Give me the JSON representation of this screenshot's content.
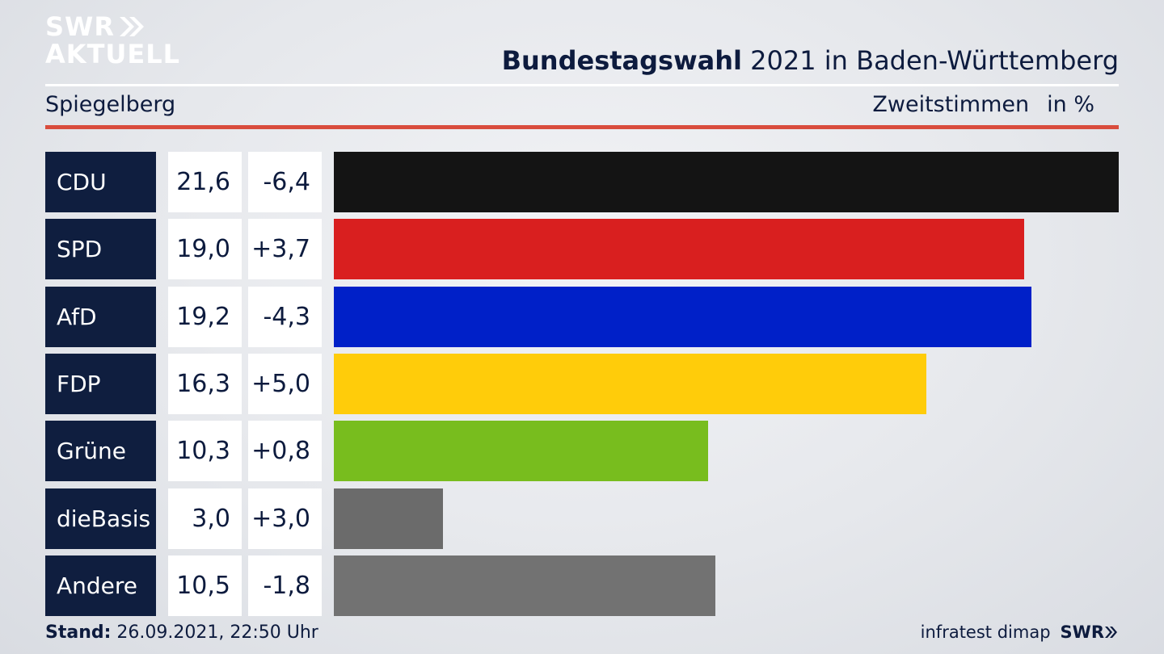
{
  "logo": {
    "line1": "SWR",
    "line2": "AKTUELL"
  },
  "headline": {
    "bold": "Bundestagswahl",
    "rest": " 2021 in Baden-Württemberg"
  },
  "region": "Spiegelberg",
  "metric": {
    "label": "Zweitstimmen",
    "unit": "in %"
  },
  "chart_data": {
    "type": "bar",
    "orientation": "horizontal",
    "categories": [
      "CDU",
      "SPD",
      "AfD",
      "FDP",
      "Grüne",
      "dieBasis",
      "Andere"
    ],
    "values": [
      21.6,
      19.0,
      19.2,
      16.3,
      10.3,
      3.0,
      10.5
    ],
    "value_labels": [
      "21,6",
      "19,0",
      "19,2",
      "16,3",
      "10,3",
      "3,0",
      "10,5"
    ],
    "changes": [
      "-6,4",
      "+3,7",
      "-4,3",
      "+5,0",
      "+0,8",
      "+3,0",
      "-1,8"
    ],
    "colors": [
      "#141414",
      "#d91f1f",
      "#0020c8",
      "#ffcc0a",
      "#78bd1e",
      "#6b6b6b",
      "#727272"
    ],
    "xlim": [
      0,
      21.6
    ]
  },
  "footer": {
    "stand_label": "Stand:",
    "stand_value": " 26.09.2021, 22:50 Uhr",
    "source": "infratest dimap",
    "brand": "SWR"
  }
}
